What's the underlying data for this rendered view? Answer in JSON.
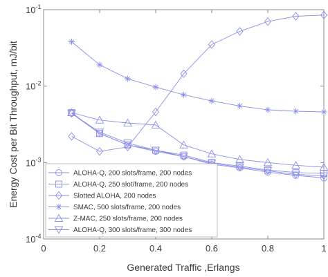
{
  "chart_data": {
    "type": "line",
    "title": "",
    "xlabel": "Generated Traffic ,Erlangs",
    "ylabel": "Energy Cost per Bit Throughput, mJ/bit",
    "xlim": [
      0,
      1
    ],
    "ylim": [
      0.0001,
      0.1
    ],
    "yscale": "log",
    "grid": false,
    "legend_position": "bottom-left",
    "series_color": "#8a8ee8",
    "x_ticks": [
      "0",
      "0.2",
      "0.4",
      "0.6",
      "0.8",
      "1"
    ],
    "y_ticks": [
      {
        "base": "10",
        "exp": "-4"
      },
      {
        "base": "10",
        "exp": "-3"
      },
      {
        "base": "10",
        "exp": "-2"
      },
      {
        "base": "10",
        "exp": "-1"
      }
    ],
    "x": [
      0.1,
      0.2,
      0.3,
      0.4,
      0.5,
      0.6,
      0.7,
      0.8,
      0.9,
      1.0
    ],
    "series": [
      {
        "name": "ALOHA-Q, 200 slots/frame, 200 nodes",
        "marker": "circle",
        "values": [
          0.0044,
          0.0024,
          0.0017,
          0.0014,
          0.0012,
          0.00095,
          0.00085,
          0.00075,
          0.00068,
          0.00063
        ]
      },
      {
        "name": "ALOHA-Q, 250 slot/frame, 200 nodes",
        "marker": "square",
        "values": [
          0.0045,
          0.0024,
          0.0017,
          0.00145,
          0.00125,
          0.001,
          0.0009,
          0.0008,
          0.00074,
          0.00072
        ]
      },
      {
        "name": "Slotted ALOHA, 200 nodes",
        "marker": "diamond",
        "values": [
          0.0022,
          0.0014,
          0.0016,
          0.0046,
          0.0145,
          0.035,
          0.052,
          0.07,
          0.082,
          0.085
        ]
      },
      {
        "name": "SMAC, 500 slots/frame, 200 nodes",
        "marker": "star",
        "values": [
          0.038,
          0.019,
          0.0125,
          0.0097,
          0.0077,
          0.0064,
          0.0055,
          0.0049,
          0.0047,
          0.0046
        ]
      },
      {
        "name": "Z-MAC, 250 slots/frame, 200 nodes",
        "marker": "triangle-up",
        "values": [
          0.0045,
          0.0036,
          0.0033,
          0.0031,
          0.0017,
          0.0013,
          0.0011,
          0.001,
          0.00092,
          0.00087
        ]
      },
      {
        "name": "ALOHA-Q, 300 slots/frame, 300 nodes",
        "marker": "triangle-down",
        "values": [
          0.0044,
          0.0025,
          0.0018,
          0.00145,
          0.0012,
          0.00098,
          0.00087,
          0.00078,
          0.0007,
          0.00067
        ]
      }
    ]
  }
}
